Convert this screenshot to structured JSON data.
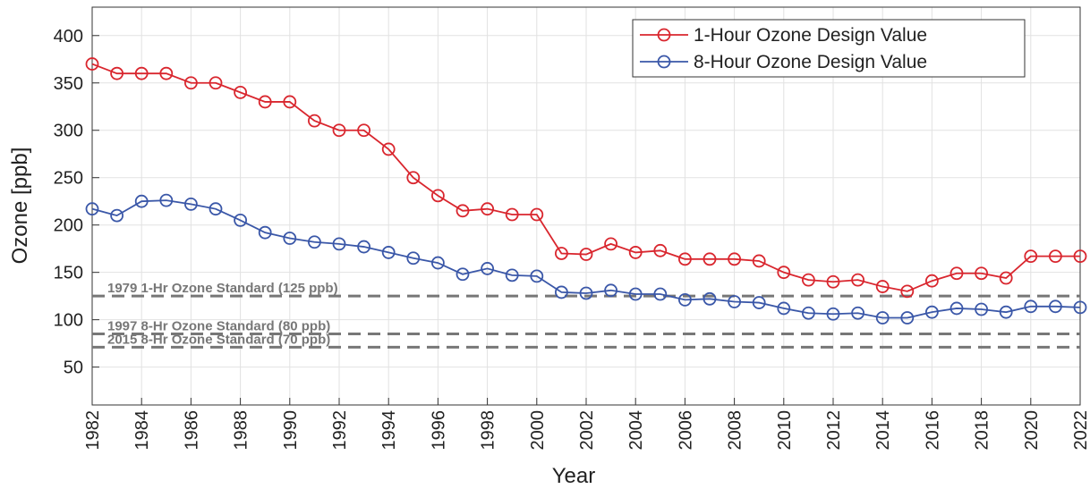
{
  "chart_data": {
    "type": "line",
    "xlabel": "Year",
    "ylabel": "Ozone [ppb]",
    "x": [
      1982,
      1983,
      1984,
      1985,
      1986,
      1987,
      1988,
      1989,
      1990,
      1991,
      1992,
      1993,
      1994,
      1995,
      1996,
      1997,
      1998,
      1999,
      2000,
      2001,
      2002,
      2003,
      2004,
      2005,
      2006,
      2007,
      2008,
      2009,
      2010,
      2011,
      2012,
      2013,
      2014,
      2015,
      2016,
      2017,
      2018,
      2019,
      2020,
      2021,
      2022
    ],
    "series": [
      {
        "name": "1-Hour Ozone Design Value",
        "color": "#d9262e",
        "values": [
          370,
          360,
          360,
          360,
          350,
          350,
          340,
          330,
          330,
          310,
          300,
          300,
          280,
          250,
          231,
          215,
          217,
          211,
          211,
          170,
          169,
          180,
          171,
          173,
          164,
          164,
          164,
          162,
          150,
          142,
          140,
          142,
          135,
          130,
          141,
          149,
          149,
          144,
          167,
          167,
          167
        ]
      },
      {
        "name": "8-Hour Ozone Design Value",
        "color": "#3a57a8",
        "values": [
          217,
          210,
          225,
          226,
          222,
          217,
          205,
          192,
          186,
          182,
          180,
          177,
          171,
          165,
          160,
          148,
          154,
          147,
          146,
          129,
          128,
          131,
          127,
          127,
          121,
          122,
          119,
          118,
          112,
          107,
          106,
          107,
          102,
          102,
          108,
          112,
          111,
          108,
          114,
          114,
          113
        ]
      }
    ],
    "reference_lines": [
      {
        "value": 125,
        "label": "1979 1-Hr Ozone Standard (125 ppb)"
      },
      {
        "value": 85,
        "label": "1997 8-Hr Ozone Standard (80 ppb)"
      },
      {
        "value": 71,
        "label": "2015 8-Hr Ozone Standard (70 ppb)"
      }
    ],
    "xlim": [
      1982,
      2022
    ],
    "xticks": [
      1982,
      1984,
      1986,
      1988,
      1990,
      1992,
      1994,
      1996,
      1998,
      2000,
      2002,
      2004,
      2006,
      2008,
      2010,
      2012,
      2014,
      2016,
      2018,
      2020,
      2022
    ],
    "ylim": [
      10,
      430
    ],
    "yticks": [
      50,
      100,
      150,
      200,
      250,
      300,
      350,
      400
    ],
    "grid": true,
    "legend": "upper right"
  }
}
